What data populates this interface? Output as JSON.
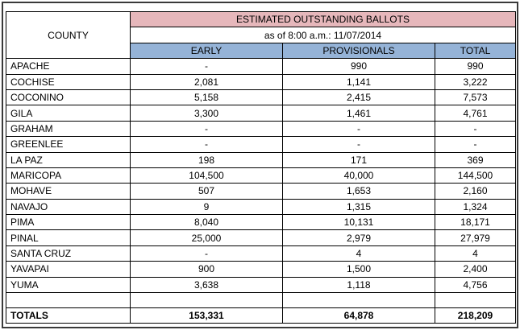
{
  "header": {
    "title": "ESTIMATED OUTSTANDING BALLOTS",
    "subtitle": "as of 8:00 a.m.:  11/07/2014",
    "county_label": "COUNTY",
    "columns": [
      "EARLY",
      "PROVISIONALS",
      "TOTAL"
    ]
  },
  "rows": [
    {
      "county": "APACHE",
      "early": "-",
      "provisionals": "990",
      "total": "990"
    },
    {
      "county": "COCHISE",
      "early": "2,081",
      "provisionals": "1,141",
      "total": "3,222"
    },
    {
      "county": "COCONINO",
      "early": "5,158",
      "provisionals": "2,415",
      "total": "7,573"
    },
    {
      "county": "GILA",
      "early": "3,300",
      "provisionals": "1,461",
      "total": "4,761"
    },
    {
      "county": "GRAHAM",
      "early": "-",
      "provisionals": "-",
      "total": "-"
    },
    {
      "county": "GREENLEE",
      "early": "-",
      "provisionals": "-",
      "total": "-"
    },
    {
      "county": "LA PAZ",
      "early": "198",
      "provisionals": "171",
      "total": "369"
    },
    {
      "county": "MARICOPA",
      "early": "104,500",
      "provisionals": "40,000",
      "total": "144,500"
    },
    {
      "county": "MOHAVE",
      "early": "507",
      "provisionals": "1,653",
      "total": "2,160"
    },
    {
      "county": "NAVAJO",
      "early": "9",
      "provisionals": "1,315",
      "total": "1,324"
    },
    {
      "county": "PIMA",
      "early": "8,040",
      "provisionals": "10,131",
      "total": "18,171"
    },
    {
      "county": "PINAL",
      "early": "25,000",
      "provisionals": "2,979",
      "total": "27,979"
    },
    {
      "county": "SANTA CRUZ",
      "early": "-",
      "provisionals": "4",
      "total": "4"
    },
    {
      "county": "YAVAPAI",
      "early": "900",
      "provisionals": "1,500",
      "total": "2,400"
    },
    {
      "county": "YUMA",
      "early": "3,638",
      "provisionals": "1,118",
      "total": "4,756"
    }
  ],
  "totals": {
    "label": "TOTALS",
    "early": "153,331",
    "provisionals": "64,878",
    "total": "218,209"
  },
  "colors": {
    "title_bg": "#e6b7bb",
    "column_header_bg": "#95b3d7"
  }
}
